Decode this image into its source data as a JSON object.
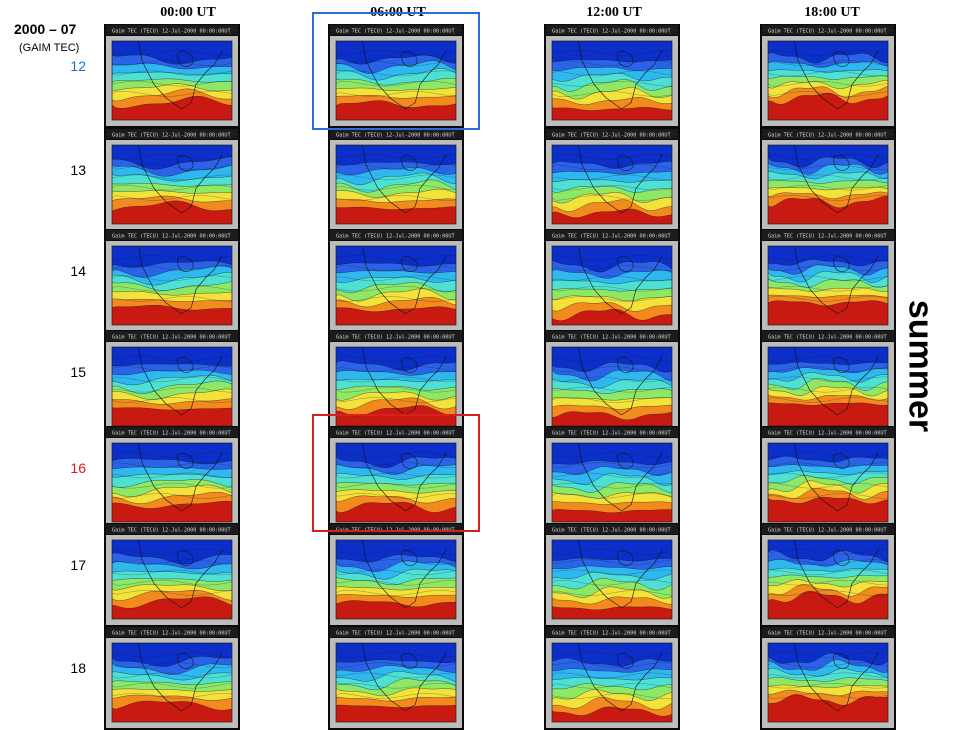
{
  "figure": {
    "title": "2000 – 07",
    "subtitle": "(GAIM TEC)",
    "season_label": "summer",
    "columns": [
      "00:00 UT",
      "06:00 UT",
      "12:00 UT",
      "18:00 UT"
    ],
    "rows": [
      {
        "day": "12",
        "color": "#1a6fd1"
      },
      {
        "day": "13",
        "color": "#000000"
      },
      {
        "day": "14",
        "color": "#000000"
      },
      {
        "day": "15",
        "color": "#000000"
      },
      {
        "day": "16",
        "color": "#e0191b"
      },
      {
        "day": "17",
        "color": "#000000"
      },
      {
        "day": "18",
        "color": "#000000"
      }
    ],
    "panel_caption_format": "Gaim TEC (TECU) 12-Jul-2000 00:00:00UT",
    "highlights": [
      {
        "column": "06:00 UT",
        "day": "12",
        "color": "#2a6fd6"
      },
      {
        "column": "06:00 UT",
        "day": "16",
        "color": "#d42020"
      }
    ],
    "colors": {
      "deep_blue": "#0b2fc8",
      "blue": "#2a62e8",
      "cyan": "#2fb8f0",
      "aqua": "#4ee0d2",
      "green": "#8ee866",
      "yellow": "#f3e23a",
      "orange": "#f38a1e",
      "red": "#c81a10"
    }
  }
}
